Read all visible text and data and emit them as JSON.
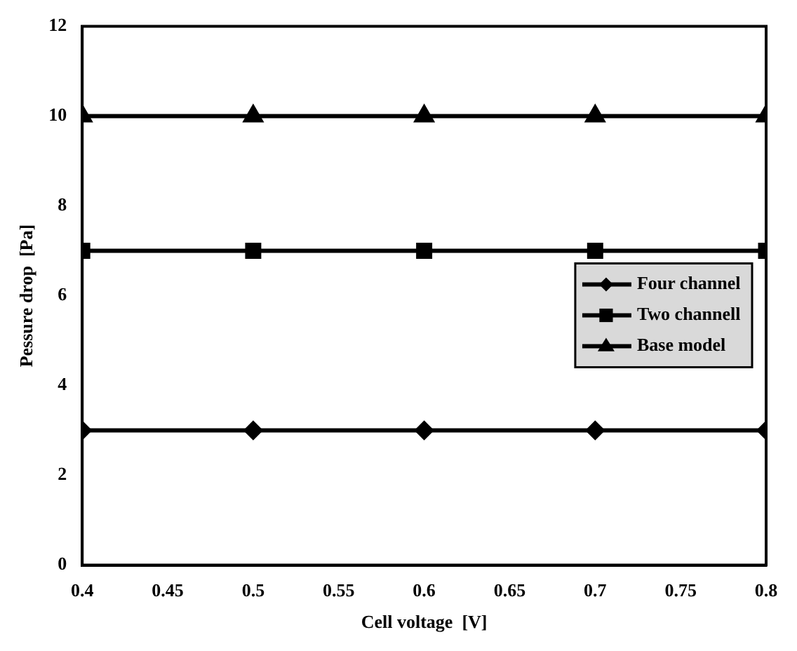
{
  "chart_data": {
    "type": "line",
    "xlabel": "Cell voltage  [V]",
    "ylabel": "Pessure drop  [Pa]",
    "x": [
      0.4,
      0.5,
      0.6,
      0.7,
      0.8
    ],
    "xlim": [
      0.4,
      0.8
    ],
    "xticks": [
      0.4,
      0.45,
      0.5,
      0.55,
      0.6,
      0.65,
      0.7,
      0.75,
      0.8
    ],
    "ylim": [
      0,
      12
    ],
    "yticks": [
      0,
      2,
      4,
      6,
      8,
      10,
      12
    ],
    "grid": false,
    "legend": "right",
    "series": [
      {
        "name": "Four channel",
        "color": "#000000",
        "marker": "diamond",
        "values": [
          3,
          3,
          3,
          3,
          3
        ]
      },
      {
        "name": "Two channell",
        "color": "#000000",
        "marker": "square",
        "values": [
          7,
          7,
          7,
          7,
          7
        ]
      },
      {
        "name": "Base model",
        "color": "#000000",
        "marker": "triangle",
        "values": [
          10,
          10,
          10,
          10,
          10
        ]
      }
    ]
  }
}
